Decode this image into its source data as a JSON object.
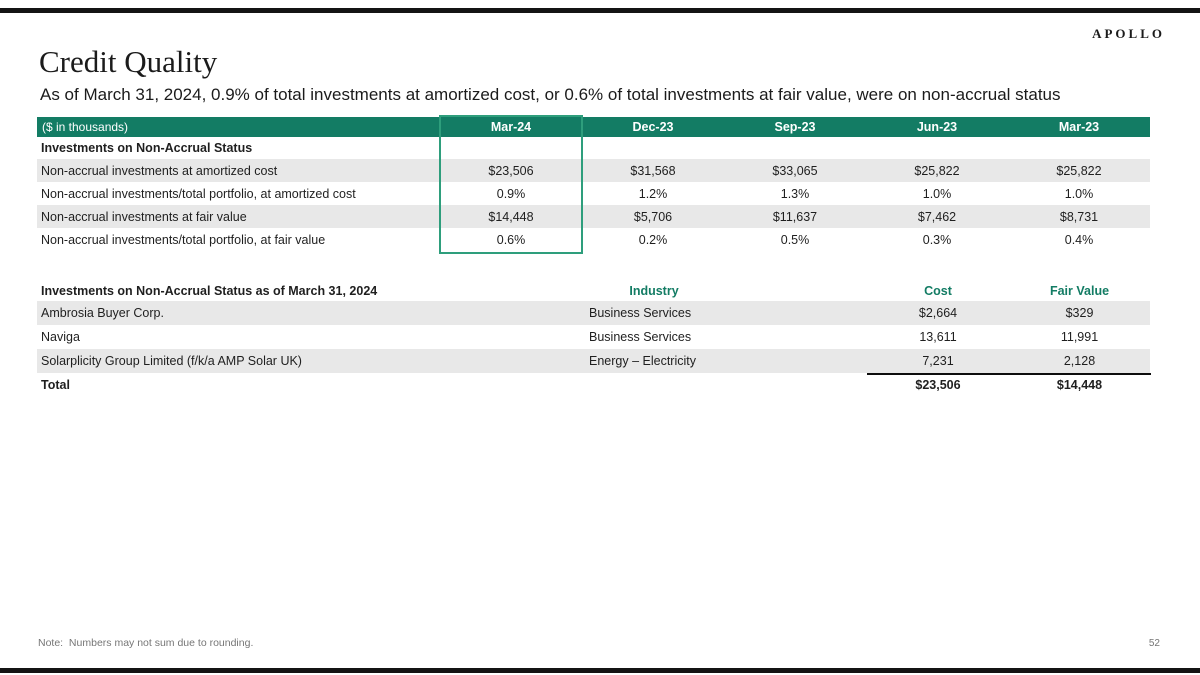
{
  "logo": "APOLLO",
  "page": {
    "title": "Credit Quality",
    "subtitle": "As of March 31, 2024, 0.9% of total investments at amortized cost, or 0.6% of total investments at fair value, were on non-accrual status",
    "note": "Note:  Numbers may not sum due to rounding.",
    "page_number": "52"
  },
  "colors": {
    "header_green": "#137c64",
    "highlight_border_green": "#2e9e7c",
    "row_stripe_gray": "#e8e8e8"
  },
  "table1": {
    "unit_label": "($ in thousands)",
    "columns": [
      "Mar-24",
      "Dec-23",
      "Sep-23",
      "Jun-23",
      "Mar-23"
    ],
    "highlighted_column": "Mar-24",
    "section": "Investments on Non-Accrual Status",
    "rows": [
      {
        "label": "Non-accrual investments at amortized cost",
        "values": [
          "$23,506",
          "$31,568",
          "$33,065",
          "$25,822",
          "$25,822"
        ]
      },
      {
        "label": "Non-accrual investments/total portfolio, at amortized cost",
        "values": [
          "0.9%",
          "1.2%",
          "1.3%",
          "1.0%",
          "1.0%"
        ]
      },
      {
        "label": "Non-accrual investments at fair value",
        "values": [
          "$14,448",
          "$5,706",
          "$11,637",
          "$7,462",
          "$8,731"
        ]
      },
      {
        "label": "Non-accrual investments/total portfolio, at fair value",
        "values": [
          "0.6%",
          "0.2%",
          "0.5%",
          "0.3%",
          "0.4%"
        ]
      }
    ]
  },
  "table2": {
    "title": "Investments on Non-Accrual Status as of March 31, 2024",
    "columns": {
      "industry": "Industry",
      "cost": "Cost",
      "fair_value": "Fair Value"
    },
    "rows": [
      {
        "name": "Ambrosia Buyer Corp.",
        "industry": "Business Services",
        "cost": "$2,664",
        "fair_value": "$329"
      },
      {
        "name": "Naviga",
        "industry": "Business Services",
        "cost": "13,611",
        "fair_value": "11,991"
      },
      {
        "name": "Solarplicity Group Limited (f/k/a AMP Solar UK)",
        "industry": "Energy – Electricity",
        "cost": "7,231",
        "fair_value": "2,128"
      }
    ],
    "total": {
      "label": "Total",
      "cost": "$23,506",
      "fair_value": "$14,448"
    }
  }
}
